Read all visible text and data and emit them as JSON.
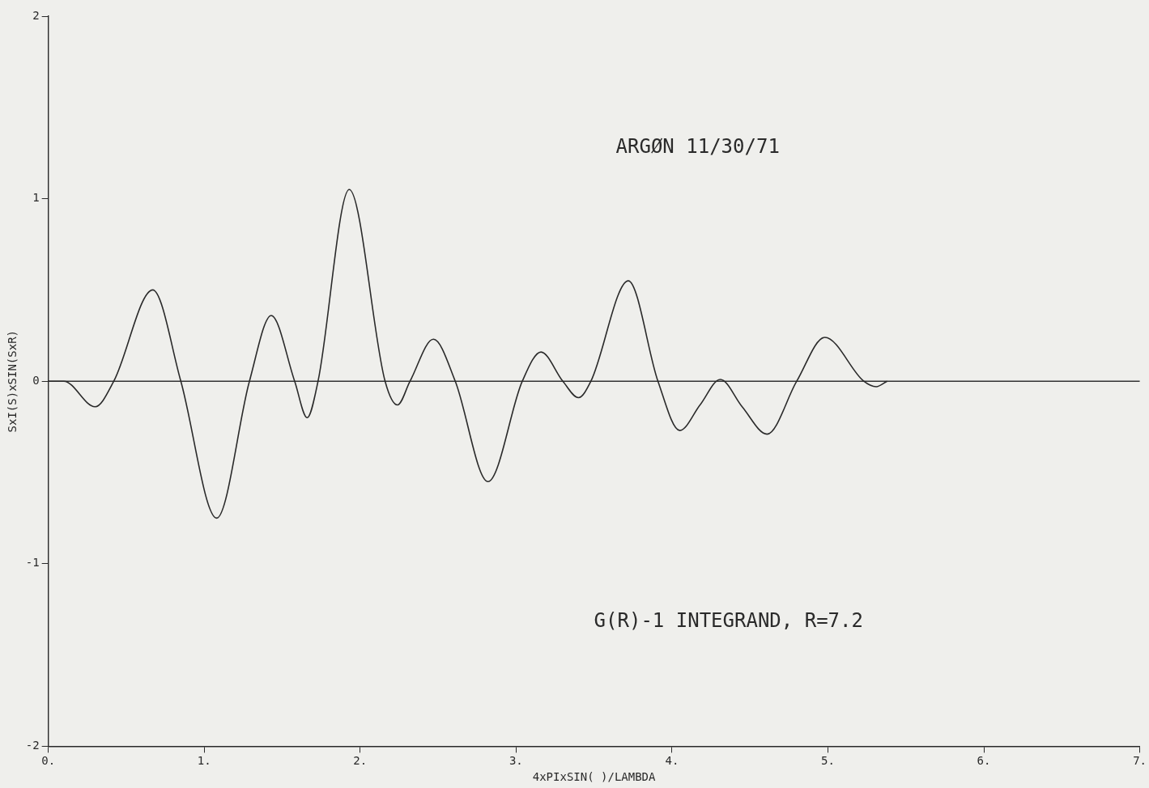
{
  "chart_data": {
    "type": "line",
    "xlabel": "4xPIxSIN( )/LAMBDA",
    "ylabel": "SxI(S)xSIN(SxR)",
    "annotations": [
      "ARGØN 11/30/71",
      "G(R)-1 INTEGRAND, R=7.2"
    ],
    "xlim": [
      0,
      7
    ],
    "xticks": [
      {
        "value": 0,
        "label": "0."
      },
      {
        "value": 1,
        "label": "1."
      },
      {
        "value": 2,
        "label": "2."
      },
      {
        "value": 3,
        "label": "3."
      },
      {
        "value": 4,
        "label": "4."
      },
      {
        "value": 5,
        "label": "5."
      },
      {
        "value": 6,
        "label": "6."
      },
      {
        "value": 7,
        "label": "7."
      }
    ],
    "ylim": [
      -2,
      2
    ],
    "yticks": [
      -2,
      -1,
      0,
      1,
      2
    ],
    "grid": false,
    "legend": false,
    "marker": "none",
    "line_style": "solid",
    "ref_lines": [
      {
        "axis": "y",
        "value": 0,
        "color": "#333333"
      }
    ],
    "series": [
      {
        "color": "#2a2a2a",
        "x": [
          0,
          0.1,
          0.3,
          0.42,
          0.67,
          0.85,
          1.08,
          1.29,
          1.43,
          1.58,
          1.66,
          1.73,
          1.93,
          2.16,
          2.24,
          2.32,
          2.47,
          2.61,
          2.82,
          3.04,
          3.16,
          3.3,
          3.4,
          3.48,
          3.72,
          3.91,
          4.05,
          4.18,
          4.31,
          4.45,
          4.61,
          4.8,
          4.98,
          5.23,
          5.31,
          5.38
        ],
        "values": [
          0,
          0,
          -0.14,
          0,
          0.5,
          0,
          -0.75,
          0,
          0.36,
          0,
          -0.2,
          0,
          1.05,
          0,
          -0.13,
          0,
          0.23,
          0,
          -0.55,
          0,
          0.16,
          0,
          -0.09,
          0,
          0.55,
          0,
          -0.27,
          -0.13,
          0.01,
          -0.14,
          -0.29,
          0,
          0.24,
          0,
          -0.03,
          0
        ]
      }
    ]
  }
}
